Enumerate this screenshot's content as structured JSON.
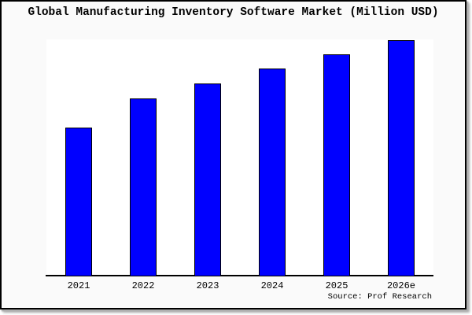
{
  "title": "Global Manufacturing Inventory Software Market (Million USD)",
  "source_note": "Source: Prof Research",
  "colors": {
    "bar_fill": "#0000ff",
    "bar_edge": "#000000",
    "canvas_bg": "#fafafa",
    "plot_bg": "#ffffff",
    "axis": "#000000",
    "text": "#000000",
    "frame_border": "#000000"
  },
  "chart_data": {
    "type": "bar",
    "title": "Global Manufacturing Inventory Software Market (Million USD)",
    "categories": [
      "2021",
      "2022",
      "2023",
      "2024",
      "2025",
      "2026e"
    ],
    "values": [
      189,
      226,
      245,
      264,
      282,
      300
    ],
    "values_unit": "relative height (no numeric y-axis shown in chart)",
    "ylim": [
      0,
      301
    ],
    "xlabel": "",
    "ylabel": "",
    "y_ticks_visible": false,
    "x_tick_labels": [
      "2021",
      "2022",
      "2023",
      "2024",
      "2025",
      "2026e"
    ],
    "grid": false,
    "legend": "none",
    "source": "Source: Prof Research"
  }
}
